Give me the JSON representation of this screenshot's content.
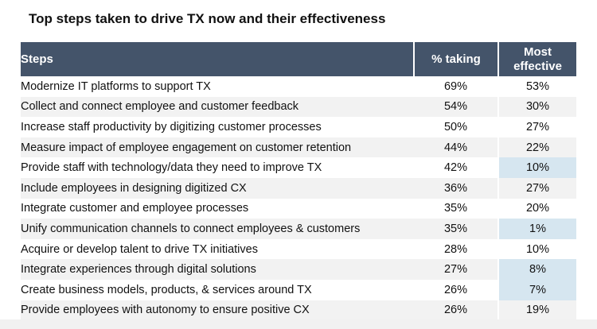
{
  "title": "Top steps taken to drive TX now and their effectiveness",
  "colors": {
    "header_bg": "#44546a",
    "header_text": "#ffffff",
    "row_stripe": "#f2f2f2",
    "highlight": "#d6e6f0"
  },
  "chart_data": {
    "type": "table",
    "title": "Top steps taken to drive TX now and their effectiveness",
    "columns": [
      "Steps",
      "% taking",
      "Most effective"
    ],
    "header_lines": {
      "steps": "Steps",
      "pct": "% taking",
      "eff_line1": "Most",
      "eff_line2": "effective"
    },
    "rows": [
      {
        "step": "Modernize IT platforms to support TX",
        "pct_taking": "69%",
        "most_effective": "53%",
        "highlight": false
      },
      {
        "step": "Collect and connect employee and customer feedback",
        "pct_taking": "54%",
        "most_effective": "30%",
        "highlight": false
      },
      {
        "step": "Increase staff productivity by digitizing customer processes",
        "pct_taking": "50%",
        "most_effective": "27%",
        "highlight": false
      },
      {
        "step": "Measure impact of employee engagement on customer retention",
        "pct_taking": "44%",
        "most_effective": "22%",
        "highlight": false
      },
      {
        "step": "Provide staff with technology/data they need to improve TX",
        "pct_taking": "42%",
        "most_effective": "10%",
        "highlight": true
      },
      {
        "step": "Include employees in designing digitized CX",
        "pct_taking": "36%",
        "most_effective": "27%",
        "highlight": false
      },
      {
        "step": "Integrate customer and employee processes",
        "pct_taking": "35%",
        "most_effective": "20%",
        "highlight": false
      },
      {
        "step": "Unify communication channels to connect employees & customers",
        "pct_taking": "35%",
        "most_effective": "1%",
        "highlight": true
      },
      {
        "step": "Acquire or develop talent to drive TX initiatives",
        "pct_taking": "28%",
        "most_effective": "10%",
        "highlight": false
      },
      {
        "step": "Integrate experiences through digital solutions",
        "pct_taking": "27%",
        "most_effective": "8%",
        "highlight": true
      },
      {
        "step": "Create business models, products, & services around TX",
        "pct_taking": "26%",
        "most_effective": "7%",
        "highlight": true
      },
      {
        "step": "Provide employees with autonomy to ensure positive CX",
        "pct_taking": "26%",
        "most_effective": "19%",
        "highlight": false
      }
    ]
  }
}
